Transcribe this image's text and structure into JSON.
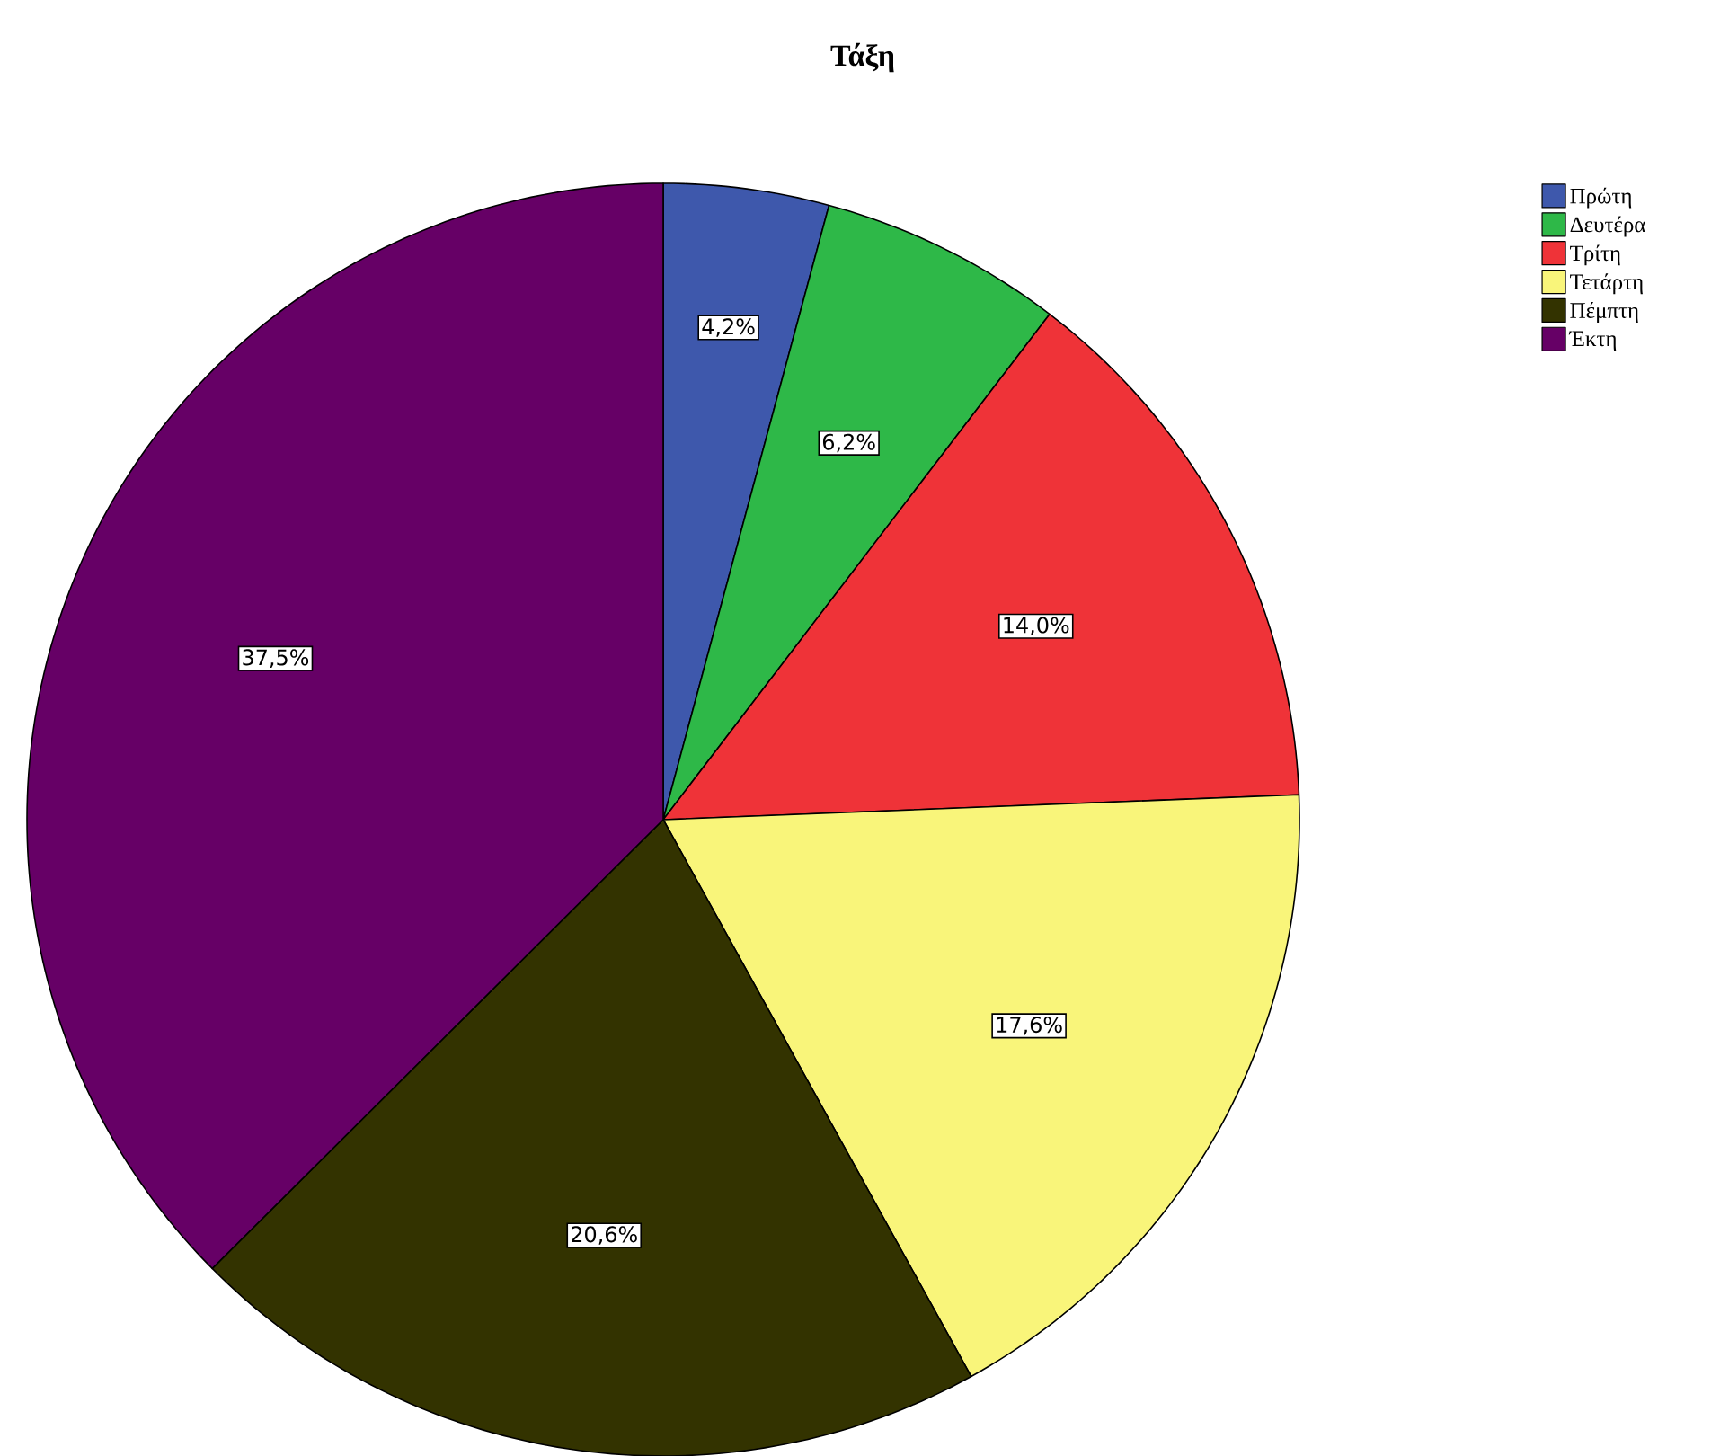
{
  "chart_data": {
    "type": "pie",
    "title": "Τάξη",
    "categories": [
      "Πρώτη",
      "Δευτέρα",
      "Τρίτη",
      "Τετάρτη",
      "Πέμπτη",
      "Έκτη"
    ],
    "values": [
      4.2,
      6.2,
      14.0,
      17.6,
      20.6,
      37.5
    ],
    "value_labels": [
      "4,2%",
      "6,2%",
      "14,0%",
      "17,6%",
      "20,6%",
      "37,5%"
    ],
    "colors": [
      "#3e58ac",
      "#2eb848",
      "#ef3338",
      "#f9f57a",
      "#333300",
      "#660066"
    ],
    "legend": "top right"
  }
}
